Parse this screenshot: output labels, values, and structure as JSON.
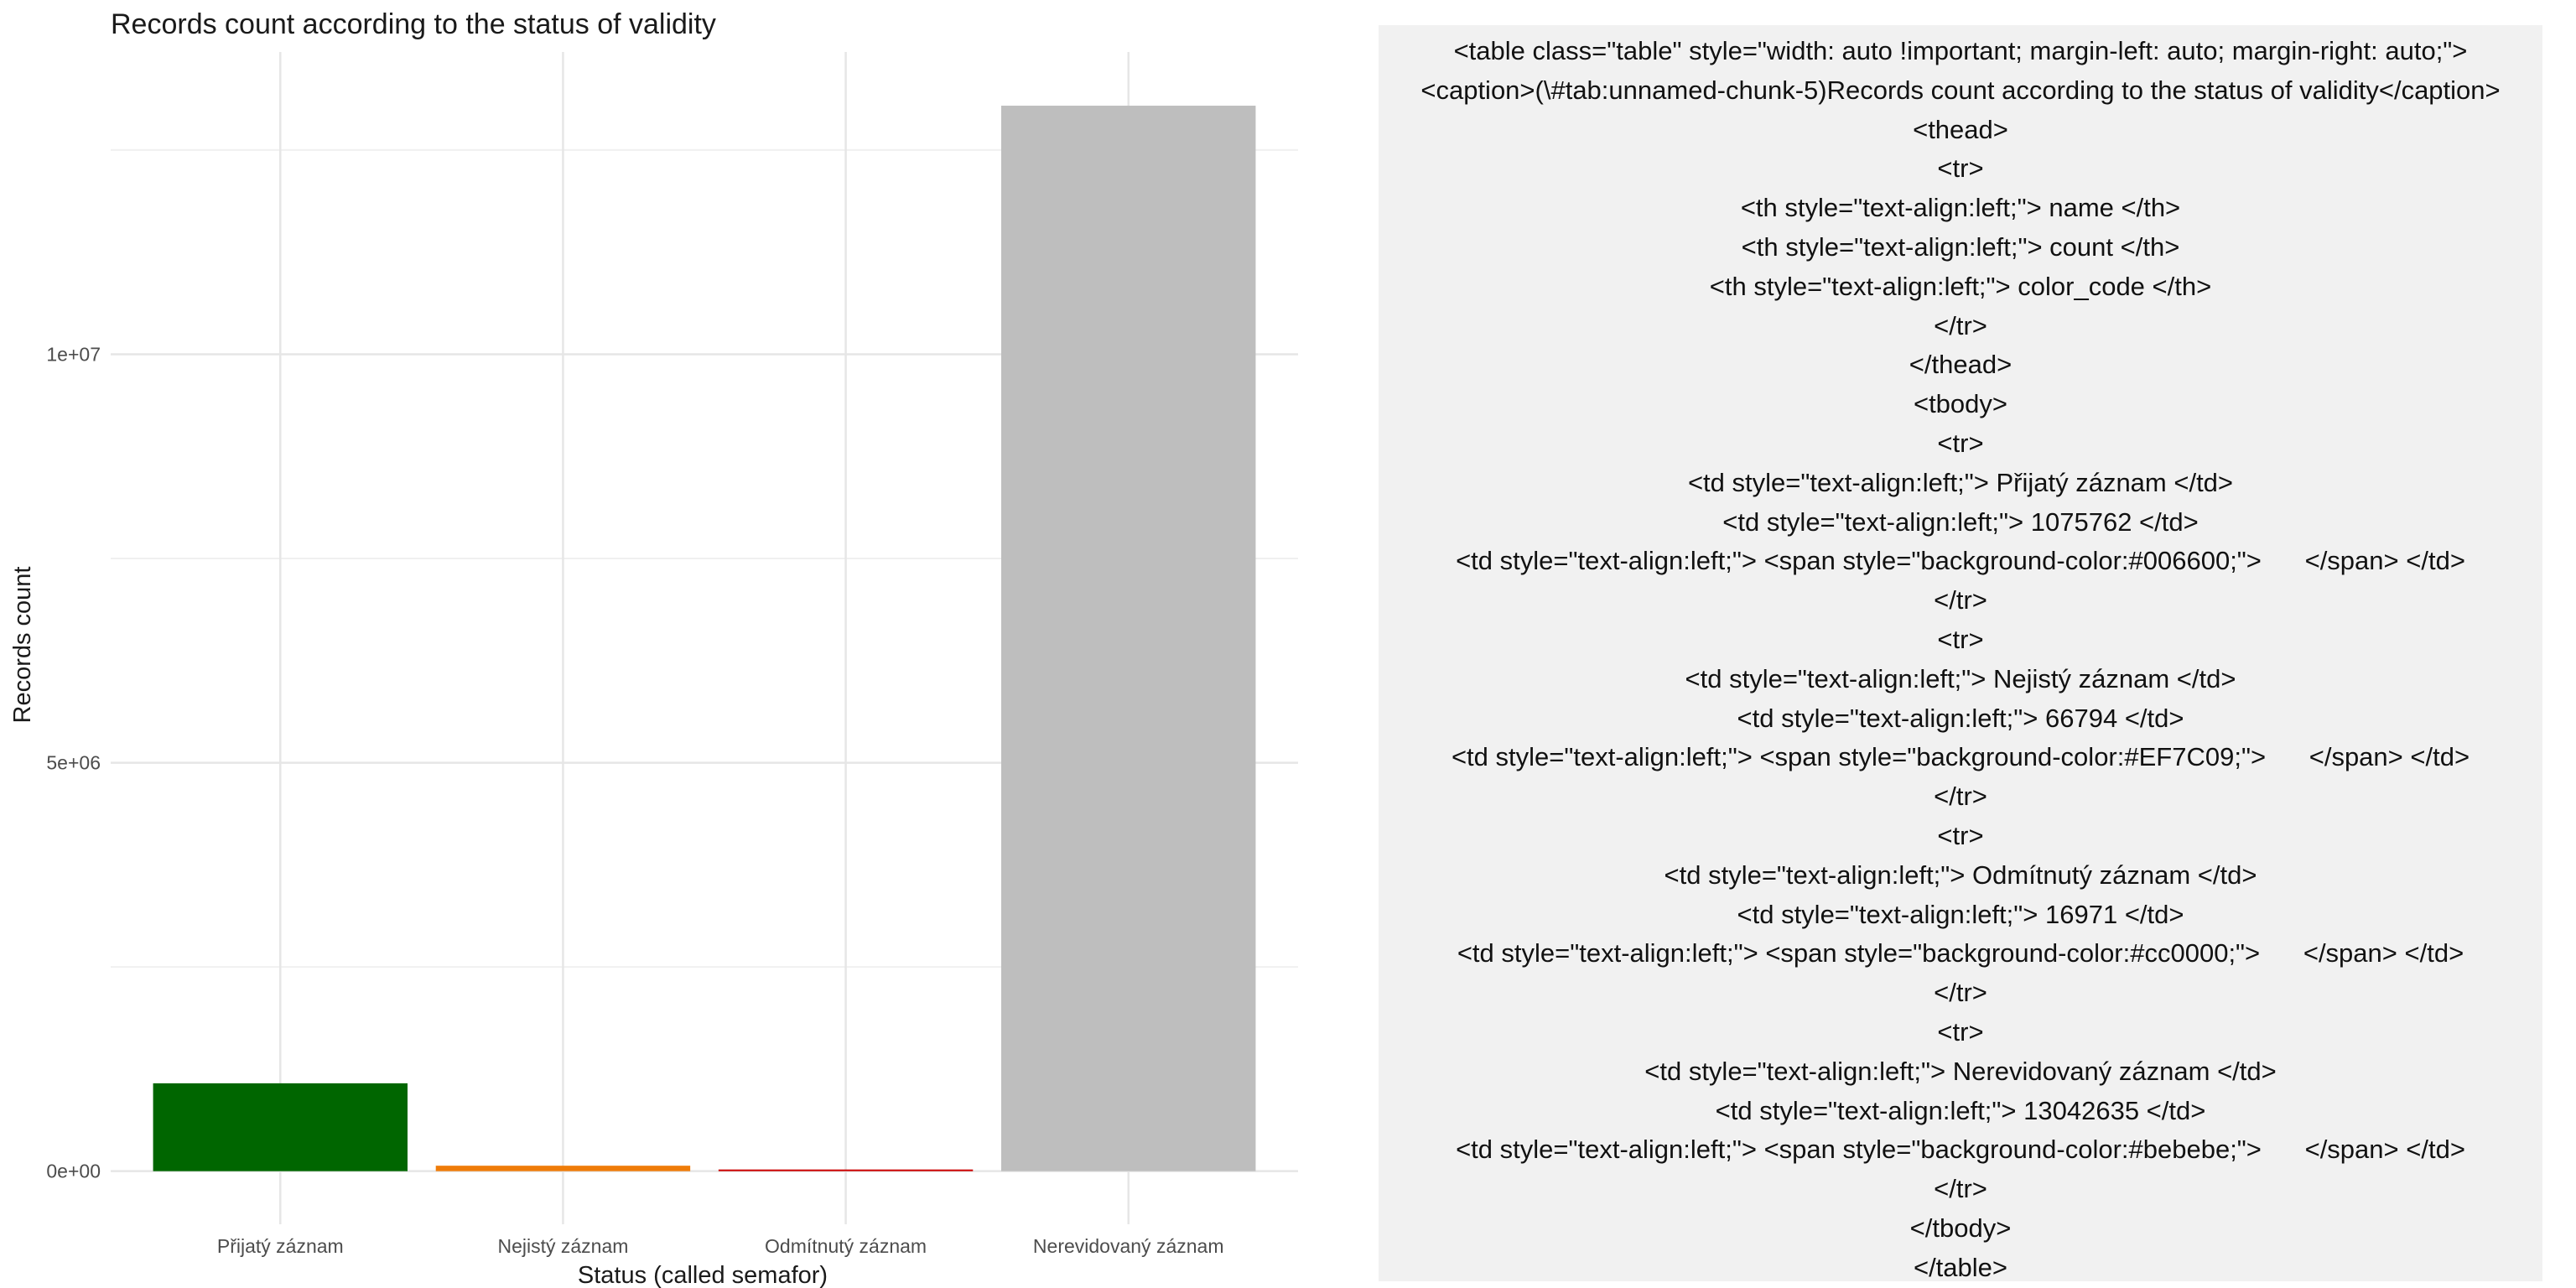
{
  "chart_data": {
    "type": "bar",
    "title": "Records count according to the status of validity",
    "xlabel": "Status (called semafor)",
    "ylabel": "Records count",
    "categories": [
      "Přijatý záznam",
      "Nejistý záznam",
      "Odmítnutý záznam",
      "Nerevidovaný záznam"
    ],
    "values": [
      1075762,
      66794,
      16971,
      13042635
    ],
    "colors": [
      "#006600",
      "#EF7C09",
      "#cc0000",
      "#bebebe"
    ],
    "yticks": [
      {
        "value": 0,
        "label": "0e+00"
      },
      {
        "value": 5000000,
        "label": "5e+06"
      },
      {
        "value": 10000000,
        "label": "1e+07"
      }
    ],
    "ylim": [
      -650000,
      13700000
    ],
    "grid": true,
    "legend": "none"
  },
  "code_panel": {
    "lines": [
      "<table class=\"table\" style=\"width: auto !important; margin-left: auto; margin-right: auto;\">",
      "<caption>(\\#tab:unnamed-chunk-5)Records count according to the status of validity</caption>",
      "<thead>",
      "<tr>",
      "<th style=\"text-align:left;\"> name </th>",
      "<th style=\"text-align:left;\"> count </th>",
      "<th style=\"text-align:left;\"> color_code </th>",
      "</tr>",
      "</thead>",
      "<tbody>",
      "<tr>",
      "<td style=\"text-align:left;\"> Přijatý záznam </td>",
      "<td style=\"text-align:left;\"> 1075762 </td>",
      "<td style=\"text-align:left;\"> <span style=\"background-color:#006600;\">      </span> </td>",
      "</tr>",
      "<tr>",
      "<td style=\"text-align:left;\"> Nejistý záznam </td>",
      "<td style=\"text-align:left;\"> 66794 </td>",
      "<td style=\"text-align:left;\"> <span style=\"background-color:#EF7C09;\">      </span> </td>",
      "</tr>",
      "<tr>",
      "<td style=\"text-align:left;\"> Odmítnutý záznam </td>",
      "<td style=\"text-align:left;\"> 16971 </td>",
      "<td style=\"text-align:left;\"> <span style=\"background-color:#cc0000;\">      </span> </td>",
      "</tr>",
      "<tr>",
      "<td style=\"text-align:left;\"> Nerevidovaný záznam </td>",
      "<td style=\"text-align:left;\"> 13042635 </td>",
      "<td style=\"text-align:left;\"> <span style=\"background-color:#bebebe;\">      </span> </td>",
      "</tr>",
      "</tbody>",
      "</table>"
    ]
  }
}
